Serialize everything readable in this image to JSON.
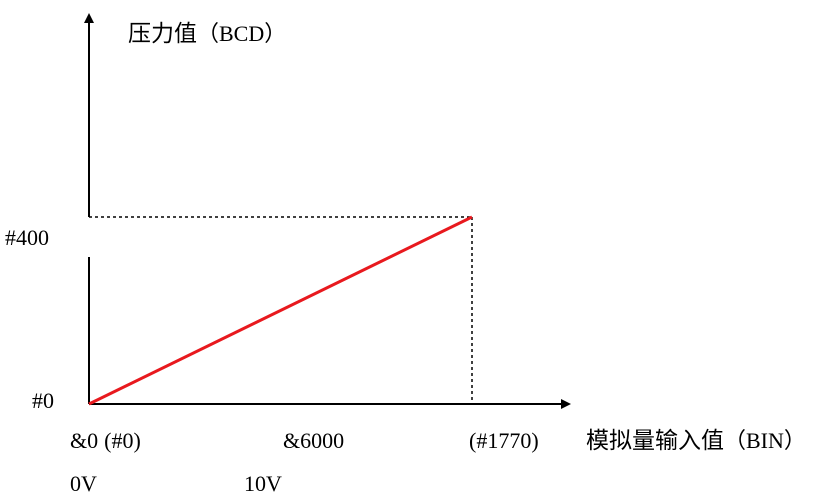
{
  "chart_data": {
    "type": "line",
    "y_axis_title": {
      "main": "压力值",
      "unit": "（BCD）"
    },
    "x_axis_title": {
      "main": "模拟量输入值",
      "unit": "（BIN）"
    },
    "y_ticks": [
      "#0",
      "#400"
    ],
    "x_tick_rows": [
      [
        {
          "text": "&0",
          "sans_paren": false,
          "at": 0
        },
        {
          "text": "(",
          "sans_paren": true,
          "at": 0
        },
        {
          "text": "#0",
          "sans_paren": false,
          "at": 0
        },
        {
          "text": ")",
          "sans_paren": true,
          "at": 0
        }
      ]
    ],
    "x_label_start": {
      "a": "&0",
      "b": "(#0)"
    },
    "x_label_mid": "&6000",
    "x_label_end": "(#1770)",
    "voltage_labels": [
      "0V",
      "10V"
    ],
    "series": [
      {
        "x": [
          0,
          1770
        ],
        "y": [
          0,
          400
        ]
      }
    ],
    "x_range": [
      0,
      1770
    ],
    "y_range": [
      0,
      400
    ],
    "guide_lines": "dashed",
    "line_color": "#e8191e",
    "axis_color": "#000000"
  }
}
